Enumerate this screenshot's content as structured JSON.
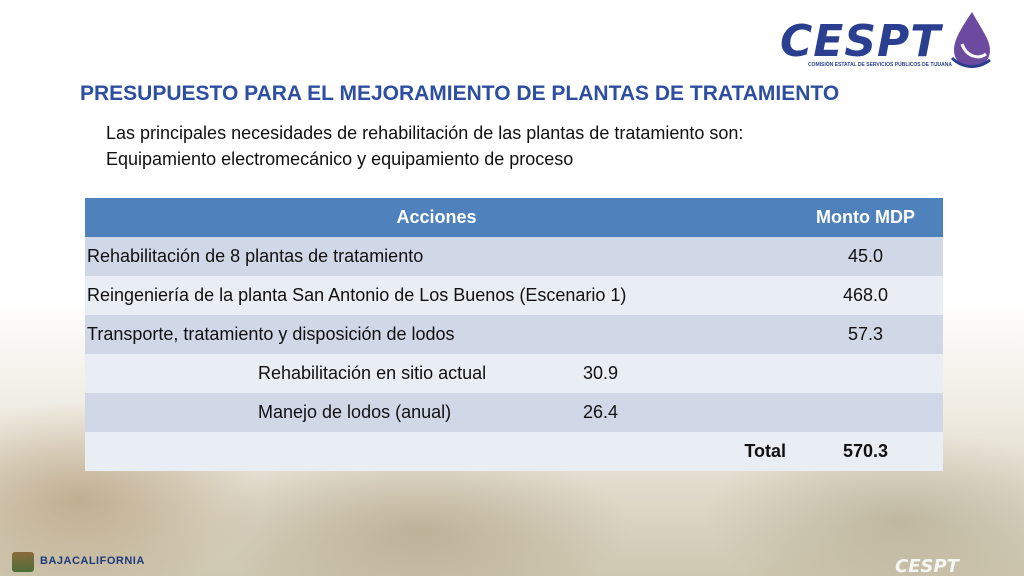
{
  "logo": {
    "word": "CESPT",
    "tagline": "COMISIÓN ESTATAL DE SERVICIOS PÚBLICOS DE TIJUANA"
  },
  "title": "PRESUPUESTO PARA EL MEJORAMIENTO DE PLANTAS DE TRATAMIENTO",
  "intro": {
    "line1": "Las principales necesidades de rehabilitación de las plantas de tratamiento son:",
    "line2": "Equipamiento electromecánico y equipamiento de proceso"
  },
  "table": {
    "headers": {
      "acciones": "Acciones",
      "monto": "Monto MDP"
    },
    "rows": [
      {
        "desc": "Rehabilitación de 8 plantas de tratamiento",
        "monto": "45.0"
      },
      {
        "desc": "Reingeniería de la planta San Antonio de Los Buenos (Escenario 1)",
        "monto": "468.0"
      },
      {
        "desc": "Transporte, tratamiento y disposición de lodos",
        "monto": "57.3"
      }
    ],
    "subrows": [
      {
        "label": "Rehabilitación en sitio actual",
        "value": "30.9"
      },
      {
        "label": "Manejo de lodos (anual)",
        "value": "26.4"
      }
    ],
    "total": {
      "label": "Total",
      "value": "570.3"
    }
  },
  "footer": {
    "left_logo": "BAJACALIFORNIA",
    "right_logo": "CESPT"
  },
  "colors": {
    "title": "#2e4fa1",
    "header_bg": "#4f81bd",
    "row_dark": "#d0d8e8",
    "row_light": "#e9edf4",
    "logo_blue": "#2a3f8f",
    "logo_drop": "#6b4aa0"
  }
}
